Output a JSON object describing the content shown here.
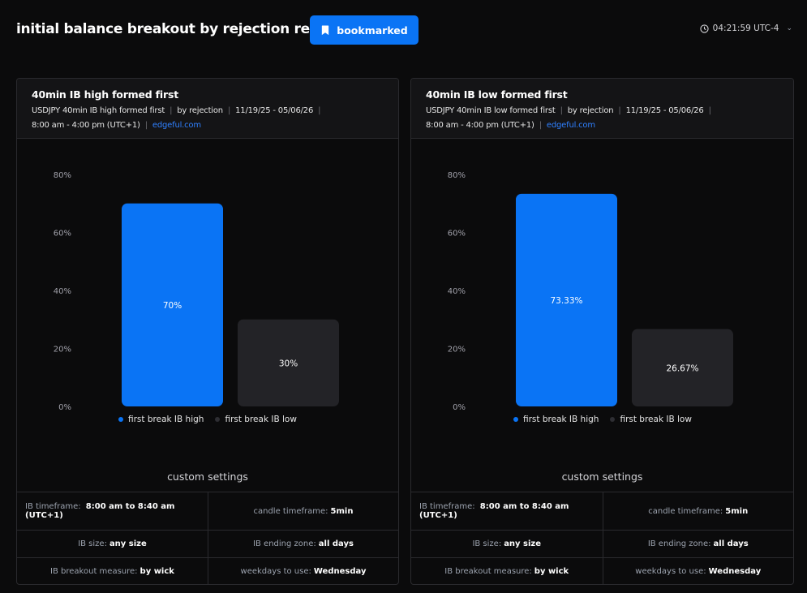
{
  "header": {
    "title": "initial balance breakout by rejection report",
    "bookmark_label": "bookmarked",
    "clock": "04:21:59 UTC-4"
  },
  "cards": [
    {
      "title": "40min IB high formed first",
      "sub_ticker": "USDJPY 40min IB high formed first",
      "sub_method": "by rejection",
      "sub_dates": "11/19/25 - 05/06/26",
      "sub_hours": "8:00 am - 4:00 pm (UTC+1)",
      "sub_link": "edgeful.com",
      "settings_title": "custom settings",
      "settings": {
        "ib_timeframe_label": "IB timeframe:",
        "ib_timeframe_value": "8:00 am to 8:40 am (UTC+1)",
        "candle_timeframe_label": "candle timeframe:",
        "candle_timeframe_value": "5min",
        "ib_size_label": "IB size:",
        "ib_size_value": "any size",
        "ib_ending_zone_label": "IB ending zone:",
        "ib_ending_zone_value": "all days",
        "ib_breakout_measure_label": "IB breakout measure:",
        "ib_breakout_measure_value": "by wick",
        "weekdays_label": "weekdays to use:",
        "weekdays_value": "Wednesday"
      }
    },
    {
      "title": "40min IB low formed first",
      "sub_ticker": "USDJPY 40min IB low formed first",
      "sub_method": "by rejection",
      "sub_dates": "11/19/25 - 05/06/26",
      "sub_hours": "8:00 am - 4:00 pm (UTC+1)",
      "sub_link": "edgeful.com",
      "settings_title": "custom settings",
      "settings": {
        "ib_timeframe_label": "IB timeframe:",
        "ib_timeframe_value": "8:00 am to 8:40 am (UTC+1)",
        "candle_timeframe_label": "candle timeframe:",
        "candle_timeframe_value": "5min",
        "ib_size_label": "IB size:",
        "ib_size_value": "any size",
        "ib_ending_zone_label": "IB ending zone:",
        "ib_ending_zone_value": "all days",
        "ib_breakout_measure_label": "IB breakout measure:",
        "ib_breakout_measure_value": "by wick",
        "weekdays_label": "weekdays to use:",
        "weekdays_value": "Wednesday"
      }
    }
  ],
  "colors": {
    "accent": "#0a74f5",
    "bar_high": "#0a74f5",
    "bar_low": "#232327",
    "link": "#2f80ff"
  },
  "chart_data": [
    {
      "type": "bar",
      "categories": [
        "first break IB high",
        "first break IB low"
      ],
      "values": [
        70,
        30
      ],
      "value_labels": [
        "70%",
        "30%"
      ],
      "yticks": [
        "0%",
        "20%",
        "40%",
        "60%",
        "80%"
      ],
      "ylim": [
        0,
        80
      ],
      "legend": [
        "first break IB high",
        "first break IB low"
      ],
      "legend_placement": "bottom",
      "grid": false
    },
    {
      "type": "bar",
      "categories": [
        "first break IB high",
        "first break IB low"
      ],
      "values": [
        73.33,
        26.67
      ],
      "value_labels": [
        "73.33%",
        "26.67%"
      ],
      "yticks": [
        "0%",
        "20%",
        "40%",
        "60%",
        "80%"
      ],
      "ylim": [
        0,
        80
      ],
      "legend": [
        "first break IB high",
        "first break IB low"
      ],
      "legend_placement": "bottom",
      "grid": false
    }
  ]
}
